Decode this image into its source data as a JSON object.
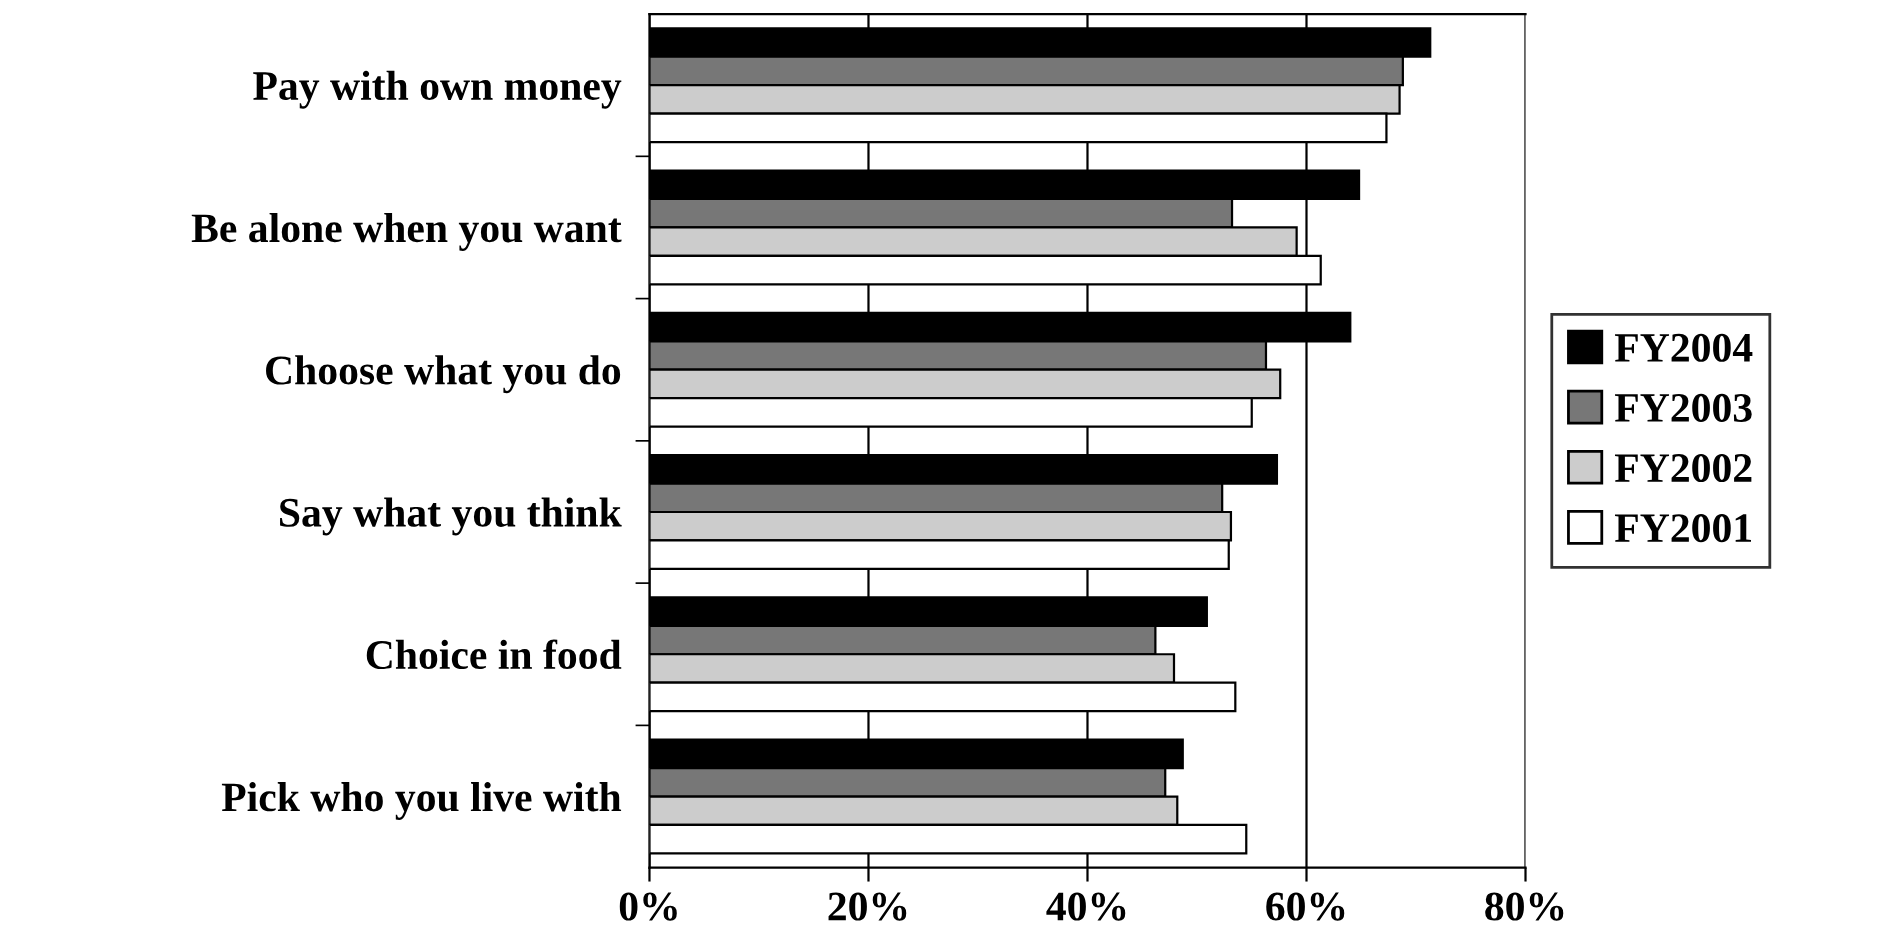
{
  "chart_data": {
    "type": "bar",
    "orientation": "horizontal",
    "categories": [
      "Pay with own money",
      "Be alone when you want",
      "Choose what you do",
      "Say what you think",
      "Choice in food",
      "Pick who you live with"
    ],
    "series": [
      {
        "name": "FY2004",
        "color": "#000000",
        "values": [
          71.3,
          64.8,
          64.0,
          57.3,
          50.9,
          48.7
        ]
      },
      {
        "name": "FY2003",
        "color": "#777777",
        "values": [
          68.8,
          53.2,
          56.3,
          52.3,
          46.2,
          47.1
        ]
      },
      {
        "name": "FY2002",
        "color": "#cccccc",
        "values": [
          68.5,
          59.1,
          57.6,
          53.1,
          47.9,
          48.2
        ]
      },
      {
        "name": "FY2001",
        "color": "#ffffff",
        "values": [
          67.3,
          61.3,
          55.0,
          52.9,
          53.5,
          54.5
        ]
      }
    ],
    "xlim": [
      0,
      80
    ],
    "xticks": [
      {
        "value": 0,
        "label": "0%"
      },
      {
        "value": 20,
        "label": "20%"
      },
      {
        "value": 40,
        "label": "40%"
      },
      {
        "value": 60,
        "label": "60%"
      },
      {
        "value": 80,
        "label": "80%"
      }
    ],
    "grid": "x",
    "legend": "right"
  }
}
